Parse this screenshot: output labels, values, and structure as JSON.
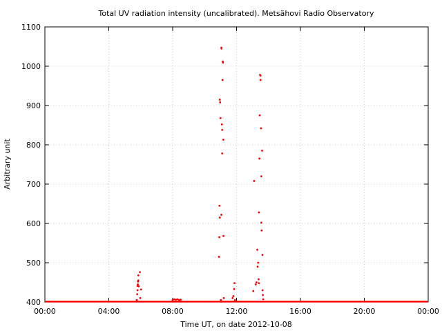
{
  "chart_data": {
    "type": "scatter",
    "title": "Total UV radiation intensity (uncalibrated). Metsähovi Radio Observatory",
    "xlabel": "Time UT, on date 2012-10-08",
    "ylabel": "Arbitrary unit",
    "xlim": [
      0,
      24
    ],
    "ylim": [
      400,
      1100
    ],
    "x_ticks": [
      0,
      4,
      8,
      12,
      16,
      20,
      24
    ],
    "x_tick_labels": [
      "00:00",
      "04:00",
      "08:00",
      "12:00",
      "16:00",
      "20:00",
      "00:00"
    ],
    "y_ticks": [
      400,
      500,
      600,
      700,
      800,
      900,
      1000,
      1100
    ],
    "y_tick_labels": [
      "400",
      "500",
      "600",
      "700",
      "800",
      "900",
      "1000",
      "1100"
    ],
    "grid": true,
    "color": "#ff0000",
    "baseline": {
      "value": 401,
      "from": 0,
      "to": 24
    },
    "points": [
      [
        5.75,
        405
      ],
      [
        5.78,
        420
      ],
      [
        5.8,
        430
      ],
      [
        5.8,
        441
      ],
      [
        5.82,
        445
      ],
      [
        5.83,
        452
      ],
      [
        5.85,
        455
      ],
      [
        5.85,
        468
      ],
      [
        5.88,
        440
      ],
      [
        5.95,
        476
      ],
      [
        5.97,
        410
      ],
      [
        6.02,
        432
      ],
      [
        8.0,
        405
      ],
      [
        8.1,
        407
      ],
      [
        8.2,
        406
      ],
      [
        8.3,
        407
      ],
      [
        8.4,
        405
      ],
      [
        8.5,
        406
      ],
      [
        10.9,
        515
      ],
      [
        10.92,
        565
      ],
      [
        10.93,
        645
      ],
      [
        10.95,
        615
      ],
      [
        10.95,
        915
      ],
      [
        10.97,
        908
      ],
      [
        11.0,
        868
      ],
      [
        11.02,
        405
      ],
      [
        11.05,
        1047
      ],
      [
        11.06,
        1045
      ],
      [
        11.05,
        622
      ],
      [
        11.08,
        852
      ],
      [
        11.1,
        838
      ],
      [
        11.1,
        778
      ],
      [
        11.12,
        965
      ],
      [
        11.14,
        1012
      ],
      [
        11.15,
        1009
      ],
      [
        11.17,
        813
      ],
      [
        11.18,
        568
      ],
      [
        11.2,
        410
      ],
      [
        11.75,
        410
      ],
      [
        11.8,
        415
      ],
      [
        11.85,
        433
      ],
      [
        11.87,
        448
      ],
      [
        11.9,
        405
      ],
      [
        13.05,
        428
      ],
      [
        13.1,
        708
      ],
      [
        13.2,
        445
      ],
      [
        13.25,
        450
      ],
      [
        13.3,
        533
      ],
      [
        13.32,
        490
      ],
      [
        13.35,
        500
      ],
      [
        13.38,
        458
      ],
      [
        13.4,
        448
      ],
      [
        13.4,
        628
      ],
      [
        13.43,
        765
      ],
      [
        13.45,
        875
      ],
      [
        13.47,
        978
      ],
      [
        13.5,
        976
      ],
      [
        13.5,
        965
      ],
      [
        13.53,
        842
      ],
      [
        13.55,
        720
      ],
      [
        13.55,
        602
      ],
      [
        13.57,
        582
      ],
      [
        13.6,
        785
      ],
      [
        13.62,
        520
      ],
      [
        13.63,
        430
      ],
      [
        13.65,
        418
      ],
      [
        13.67,
        407
      ]
    ]
  }
}
